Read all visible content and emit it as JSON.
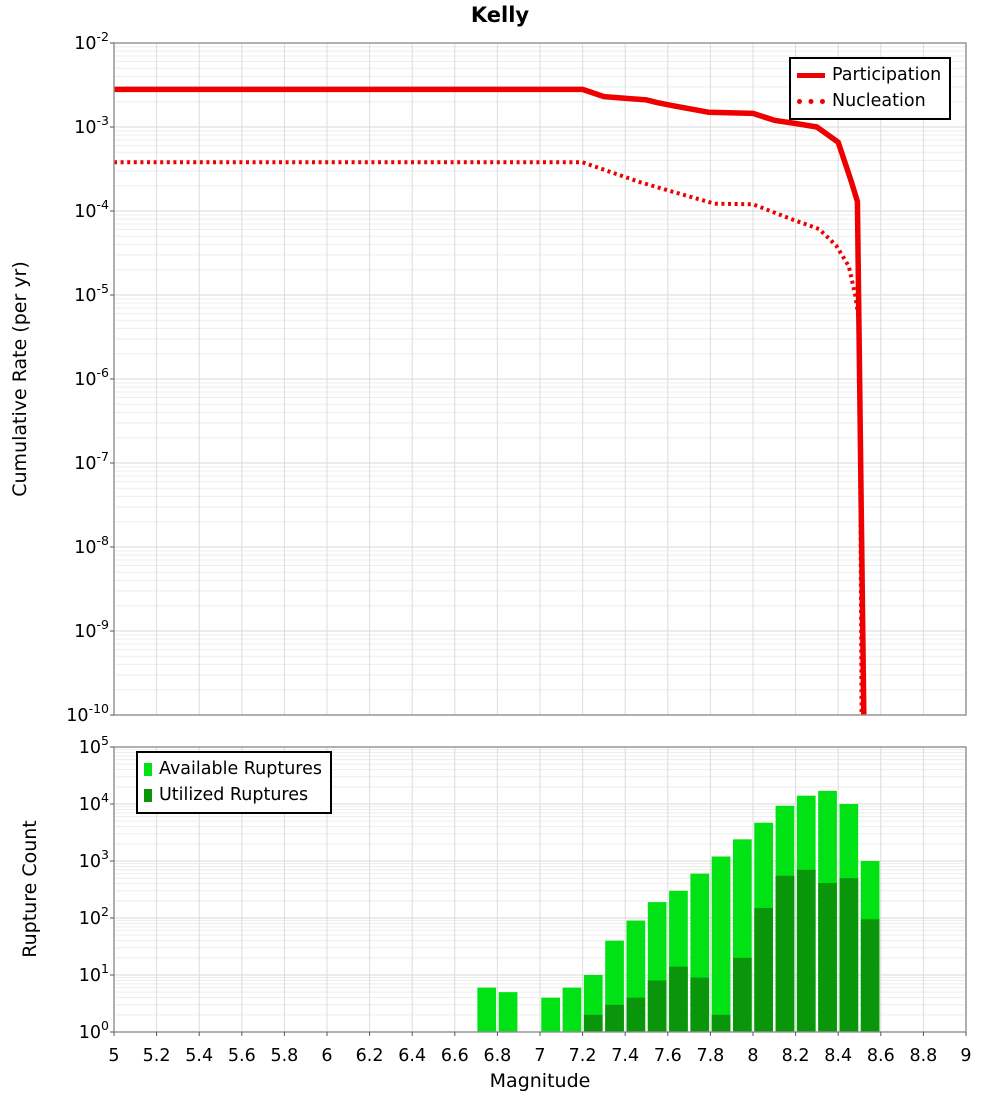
{
  "title": "Kelly",
  "colors": {
    "line_red": "#EE0000",
    "available_green": "#00E214",
    "utilized_green": "#0A960A",
    "grid_major": "#D8D8D8",
    "grid_minor": "#EDEDED",
    "grid_vertical": "#DCDCDC",
    "axis_border": "#8F8F8F",
    "tick": "#555555",
    "text": "#000000",
    "legend_border": "#000000",
    "background": "#FFFFFF"
  },
  "chart_data": [
    {
      "type": "line",
      "panel": "top",
      "title": "Kelly",
      "xlabel": "",
      "ylabel": "Cumulative Rate (per yr)",
      "yscale": "log",
      "xlim": [
        5,
        9
      ],
      "ylim": [
        1e-10,
        0.01
      ],
      "y_tick_exponents": [
        -2,
        -3,
        -4,
        -5,
        -6,
        -7,
        -8,
        -9,
        -10
      ],
      "grid": true,
      "legend": {
        "position": "top-right",
        "entries": [
          {
            "label": "Participation",
            "style": "solid"
          },
          {
            "label": "Nucleation",
            "style": "dotted"
          }
        ]
      },
      "series": [
        {
          "name": "Participation",
          "style": "solid",
          "points": [
            [
              5,
              0.0028
            ],
            [
              7.2,
              0.0028
            ],
            [
              7.3,
              0.0023
            ],
            [
              7.5,
              0.0021
            ],
            [
              7.55,
              0.00195
            ],
            [
              7.62,
              0.0018
            ],
            [
              7.79,
              0.0015
            ],
            [
              8,
              0.00145
            ],
            [
              8.1,
              0.0012
            ],
            [
              8.2,
              0.0011
            ],
            [
              8.3,
              0.001
            ],
            [
              8.4,
              0.00066
            ],
            [
              8.46,
              0.00023
            ],
            [
              8.49,
              0.00013
            ],
            [
              8.52,
              1e-10
            ]
          ]
        },
        {
          "name": "Nucleation",
          "style": "dotted",
          "points": [
            [
              5,
              0.00038
            ],
            [
              7.2,
              0.00038
            ],
            [
              7.3,
              0.00031
            ],
            [
              7.47,
              0.00022
            ],
            [
              7.62,
              0.00017
            ],
            [
              7.82,
              0.000122
            ],
            [
              8,
              0.00012
            ],
            [
              8.18,
              8e-05
            ],
            [
              8.31,
              6.1e-05
            ],
            [
              8.39,
              3.9e-05
            ],
            [
              8.45,
              2.2e-05
            ],
            [
              8.48,
              1e-05
            ],
            [
              8.5,
              4.5e-06
            ],
            [
              8.51,
              1e-10
            ]
          ]
        }
      ]
    },
    {
      "type": "bar",
      "panel": "bottom",
      "xlabel": "Magnitude",
      "ylabel": "Rupture Count",
      "yscale": "log",
      "xlim": [
        5,
        9
      ],
      "ylim": [
        1,
        100000
      ],
      "y_tick_exponents": [
        5,
        4,
        3,
        2,
        1,
        0
      ],
      "x_tick_labels": [
        "5",
        "5.2",
        "5.4",
        "5.6",
        "5.8",
        "6",
        "6.2",
        "6.4",
        "6.6",
        "6.8",
        "7",
        "7.2",
        "7.4",
        "7.6",
        "7.8",
        "8",
        "8.2",
        "8.4",
        "8.6",
        "8.8",
        "9"
      ],
      "bin_width": 0.1,
      "bin_centers": [
        6.75,
        6.85,
        6.95,
        7.05,
        7.15,
        7.25,
        7.35,
        7.45,
        7.55,
        7.65,
        7.75,
        7.85,
        7.95,
        8.05,
        8.15,
        8.25,
        8.35,
        8.45,
        8.55
      ],
      "legend": {
        "position": "top-left",
        "entries": [
          {
            "label": "Available Ruptures"
          },
          {
            "label": "Utilized Ruptures"
          }
        ]
      },
      "series": [
        {
          "name": "Available Ruptures",
          "values": [
            6,
            5,
            0,
            4,
            6,
            10,
            40,
            90,
            190,
            300,
            600,
            1200,
            2400,
            4700,
            9300,
            14000,
            17000,
            10000,
            1000
          ]
        },
        {
          "name": "Utilized Ruptures",
          "values": [
            0,
            0,
            0,
            0,
            0,
            2,
            3,
            4,
            8,
            14,
            9,
            2,
            20,
            150,
            550,
            700,
            410,
            500,
            95
          ]
        }
      ]
    }
  ]
}
